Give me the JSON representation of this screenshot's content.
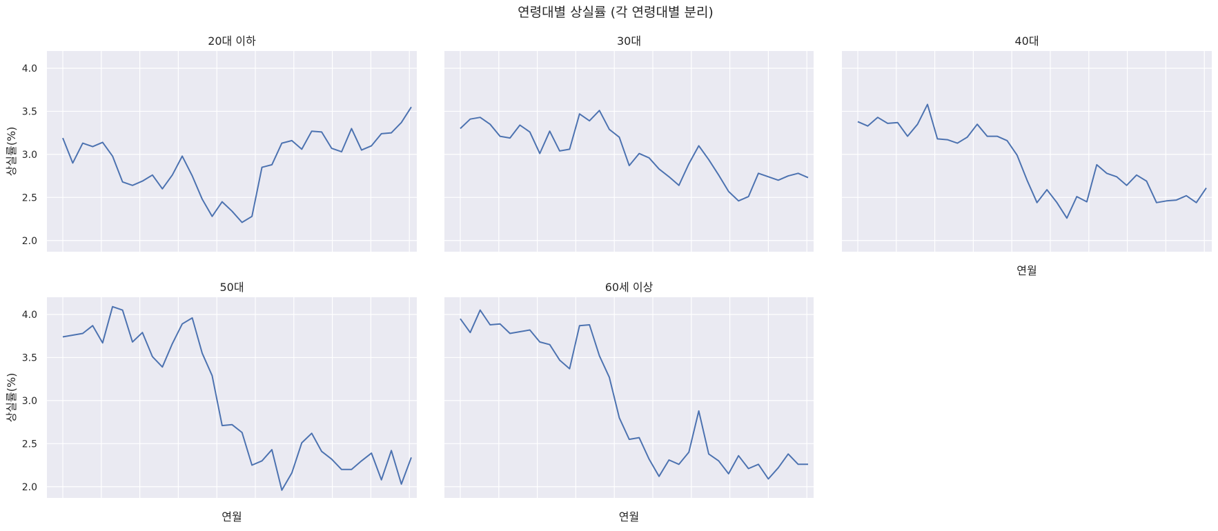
{
  "figure": {
    "title": "연령대별 상실률 (각 연령대별 분리)",
    "background": "#ffffff",
    "plot_background": "#eaeaf2",
    "grid_color": "#ffffff",
    "line_color": "#4c72b0"
  },
  "chart_data": [
    {
      "type": "line",
      "title": "20대 이하",
      "xlabel": "",
      "ylabel": "상실률(%)",
      "ylim": [
        1.87,
        4.2
      ],
      "yticks": [
        "2.0",
        "2.5",
        "3.0",
        "3.5",
        "4.0"
      ],
      "grid": true,
      "series": [
        {
          "values": [
            3.19,
            2.9,
            3.13,
            3.09,
            3.14,
            2.98,
            2.68,
            2.64,
            2.69,
            2.76,
            2.6,
            2.76,
            2.98,
            2.75,
            2.48,
            2.28,
            2.45,
            2.34,
            2.21,
            2.28,
            2.85,
            2.88,
            3.13,
            3.16,
            3.06,
            3.27,
            3.26,
            3.07,
            3.03,
            3.3,
            3.05,
            3.1,
            3.24,
            3.25,
            3.37,
            3.55
          ]
        }
      ]
    },
    {
      "type": "line",
      "title": "30대",
      "xlabel": "",
      "ylabel": "",
      "ylim": [
        1.87,
        4.2
      ],
      "yticks": [
        "2.0",
        "2.5",
        "3.0",
        "3.5",
        "4.0"
      ],
      "grid": true,
      "series": [
        {
          "values": [
            3.3,
            3.41,
            3.43,
            3.35,
            3.21,
            3.19,
            3.34,
            3.26,
            3.01,
            3.27,
            3.04,
            3.06,
            3.47,
            3.39,
            3.51,
            3.29,
            3.2,
            2.87,
            3.01,
            2.96,
            2.83,
            2.74,
            2.64,
            2.89,
            3.1,
            2.94,
            2.76,
            2.57,
            2.46,
            2.51,
            2.78,
            2.74,
            2.7,
            2.75,
            2.78,
            2.73
          ]
        }
      ]
    },
    {
      "type": "line",
      "title": "40대",
      "xlabel": "연월",
      "ylabel": "",
      "ylim": [
        1.87,
        4.2
      ],
      "yticks": [
        "2.0",
        "2.5",
        "3.0",
        "3.5",
        "4.0"
      ],
      "grid": true,
      "series": [
        {
          "values": [
            3.38,
            3.33,
            3.43,
            3.36,
            3.37,
            3.21,
            3.35,
            3.58,
            3.18,
            3.17,
            3.13,
            3.2,
            3.35,
            3.21,
            3.21,
            3.16,
            2.99,
            2.7,
            2.44,
            2.59,
            2.44,
            2.26,
            2.51,
            2.45,
            2.88,
            2.78,
            2.74,
            2.64,
            2.76,
            2.69,
            2.44,
            2.46,
            2.47,
            2.52,
            2.44,
            2.61
          ]
        }
      ]
    },
    {
      "type": "line",
      "title": "50대",
      "xlabel": "연월",
      "ylabel": "상실률(%)",
      "ylim": [
        1.87,
        4.2
      ],
      "yticks": [
        "2.0",
        "2.5",
        "3.0",
        "3.5",
        "4.0"
      ],
      "grid": true,
      "series": [
        {
          "values": [
            3.74,
            3.76,
            3.78,
            3.87,
            3.67,
            4.09,
            4.05,
            3.68,
            3.79,
            3.51,
            3.39,
            3.66,
            3.89,
            3.96,
            3.55,
            3.29,
            2.71,
            2.72,
            2.63,
            2.25,
            2.3,
            2.43,
            1.96,
            2.16,
            2.51,
            2.62,
            2.41,
            2.32,
            2.2,
            2.2,
            2.3,
            2.39,
            2.08,
            2.42,
            2.03,
            2.34
          ]
        }
      ]
    },
    {
      "type": "line",
      "title": "60세 이상",
      "xlabel": "연월",
      "ylabel": "",
      "ylim": [
        1.87,
        4.2
      ],
      "yticks": [
        "2.0",
        "2.5",
        "3.0",
        "3.5",
        "4.0"
      ],
      "grid": true,
      "series": [
        {
          "values": [
            3.95,
            3.79,
            4.05,
            3.88,
            3.89,
            3.78,
            3.8,
            3.82,
            3.68,
            3.65,
            3.47,
            3.37,
            3.87,
            3.88,
            3.52,
            3.27,
            2.8,
            2.55,
            2.57,
            2.32,
            2.12,
            2.31,
            2.26,
            2.4,
            2.88,
            2.38,
            2.3,
            2.15,
            2.36,
            2.21,
            2.26,
            2.09,
            2.22,
            2.38,
            2.26,
            2.26
          ]
        }
      ]
    }
  ]
}
